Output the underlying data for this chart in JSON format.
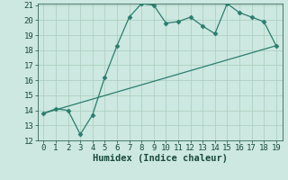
{
  "xlabel": "Humidex (Indice chaleur)",
  "line1_x": [
    0,
    1,
    2,
    3,
    4,
    5,
    6,
    7,
    8,
    9,
    10,
    11,
    12,
    13,
    14,
    15,
    16,
    17,
    18,
    19
  ],
  "line1_y": [
    13.8,
    14.1,
    14.0,
    12.4,
    13.7,
    16.2,
    18.3,
    20.2,
    21.1,
    21.0,
    19.8,
    19.9,
    20.2,
    19.6,
    19.1,
    21.1,
    20.5,
    20.2,
    19.9,
    18.3
  ],
  "line2_x": [
    0,
    19
  ],
  "line2_y": [
    13.8,
    18.3
  ],
  "line_color": "#2a7d6e",
  "bg_color": "#cce8e0",
  "grid_color": "#aaccbc",
  "text_color": "#1a4a3a",
  "ylim": [
    12,
    21
  ],
  "xlim": [
    -0.5,
    19.5
  ],
  "yticks": [
    12,
    13,
    14,
    15,
    16,
    17,
    18,
    19,
    20,
    21
  ],
  "xticks": [
    0,
    1,
    2,
    3,
    4,
    5,
    6,
    7,
    8,
    9,
    10,
    11,
    12,
    13,
    14,
    15,
    16,
    17,
    18,
    19
  ],
  "marker": "D",
  "marker_size": 2.5,
  "linewidth": 0.9,
  "font_size": 6.5,
  "xlabel_fontsize": 7.5
}
